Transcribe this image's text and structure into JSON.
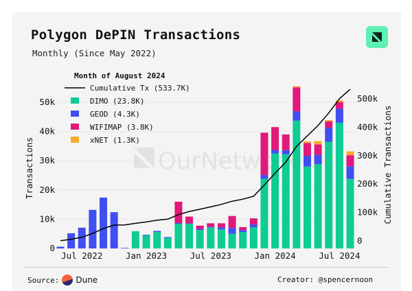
{
  "header": {
    "title": "Polygon DePIN Transactions",
    "subtitle": "Monthly (Since May 2022)"
  },
  "footer": {
    "source_label": "Source:",
    "source_name": "Dune",
    "creator": "Creator: @spencernoon"
  },
  "watermark": "OurNetwork",
  "chart_data": {
    "type": "bar",
    "stacked": true,
    "xlabel": "",
    "ylabel": "Transactions",
    "y2label": "Cumulative Transactions",
    "ylim": [
      0,
      55000
    ],
    "y2lim": [
      0,
      550000
    ],
    "yticks": [
      "0",
      "10k",
      "20k",
      "30k",
      "40k",
      "50k"
    ],
    "y2ticks": [
      "0",
      "100k",
      "200k",
      "300k",
      "400k",
      "500k"
    ],
    "xticks": [
      {
        "label": "Jul 2022",
        "index": 2
      },
      {
        "label": "Jan 2023",
        "index": 8
      },
      {
        "label": "Jul 2023",
        "index": 14
      },
      {
        "label": "Jan 2024",
        "index": 20
      },
      {
        "label": "Jul 2024",
        "index": 26
      }
    ],
    "legend_title": "Month of August 2024",
    "legend_placement": "top-left",
    "grid": true,
    "categories": [
      "May 2022",
      "Jun 2022",
      "Jul 2022",
      "Aug 2022",
      "Sep 2022",
      "Oct 2022",
      "Nov 2022",
      "Dec 2022",
      "Jan 2023",
      "Feb 2023",
      "Mar 2023",
      "Apr 2023",
      "May 2023",
      "Jun 2023",
      "Jul 2023",
      "Aug 2023",
      "Sep 2023",
      "Oct 2023",
      "Nov 2023",
      "Dec 2023",
      "Jan 2024",
      "Feb 2024",
      "Mar 2024",
      "Apr 2024",
      "May 2024",
      "Jun 2024",
      "Jul 2024",
      "Aug 2024"
    ],
    "series": [
      {
        "name": "DIMO",
        "legend": "DIMO (23.8K)",
        "color": "#0fcc94",
        "values": [
          0,
          0,
          0,
          0,
          0,
          0,
          0,
          5900,
          4600,
          5600,
          3600,
          8400,
          8400,
          6300,
          7200,
          6500,
          5000,
          5600,
          7200,
          23800,
          32500,
          32200,
          43700,
          28000,
          28800,
          36500,
          43000,
          23800
        ]
      },
      {
        "name": "GEOD",
        "legend": "GEOD (4.3K)",
        "color": "#3f4ff0",
        "values": [
          600,
          5200,
          7100,
          13200,
          17400,
          12400,
          200,
          0,
          100,
          400,
          300,
          300,
          200,
          400,
          200,
          700,
          2000,
          700,
          1000,
          1300,
          1200,
          1400,
          3200,
          3700,
          3200,
          4800,
          4800,
          4300
        ]
      },
      {
        "name": "WIFIMAP",
        "legend": "WIFIMAP (3.8K)",
        "color": "#e0197a",
        "values": [
          0,
          0,
          0,
          0,
          0,
          0,
          0,
          0,
          0,
          0,
          0,
          7300,
          2300,
          1100,
          1200,
          1400,
          4100,
          1000,
          2100,
          14500,
          7800,
          5400,
          8200,
          4400,
          3600,
          2200,
          2300,
          3800
        ]
      },
      {
        "name": "xNET",
        "legend": "xNET (1.3K)",
        "color": "#f5ad2a",
        "values": [
          0,
          0,
          0,
          0,
          0,
          0,
          0,
          0,
          0,
          0,
          0,
          0,
          0,
          0,
          0,
          0,
          0,
          0,
          0,
          0,
          0,
          0,
          400,
          500,
          1100,
          400,
          500,
          1300
        ]
      },
      {
        "name": "Cumulative Tx",
        "legend": "Cumulative Tx (533.7K)",
        "color": "#000000",
        "type": "line",
        "axis": "right",
        "final": 533700
      }
    ]
  }
}
